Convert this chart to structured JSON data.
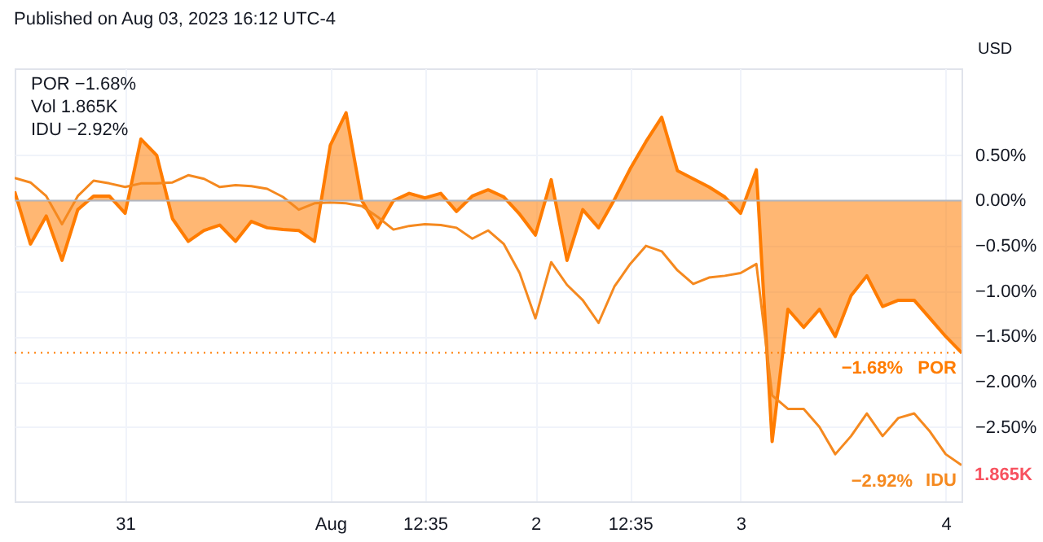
{
  "chart_data": {
    "type": "line",
    "title": "Published on Aug 03, 2023 16:12 UTC-4",
    "annotations": [
      "POR −1.68%",
      "Vol 1.865K",
      "IDU −2.92%",
      "USD",
      "1.865K",
      "−2.92%"
    ],
    "categories": [
      null,
      null,
      null,
      null,
      null,
      null,
      null,
      "31",
      null,
      null,
      null,
      null,
      null,
      null,
      null,
      null,
      null,
      null,
      null,
      null,
      "Aug",
      null,
      null,
      null,
      null,
      null,
      "12:35",
      null,
      null,
      null,
      null,
      null,
      null,
      "2",
      null,
      null,
      null,
      null,
      null,
      "12:35",
      null,
      null,
      null,
      null,
      null,
      null,
      "3",
      null,
      null,
      null,
      null,
      null,
      null,
      null,
      null,
      null,
      null,
      null,
      null,
      "4",
      null
    ],
    "ylim": [
      -3.32,
      1.46
    ],
    "yticks": [
      {
        "value": 0.5,
        "label": "0.50%"
      },
      {
        "value": 0,
        "label": "0.00%"
      },
      {
        "value": -0.5,
        "label": "−0.50%"
      },
      {
        "value": -1,
        "label": "−1.00%"
      },
      {
        "value": -1.5,
        "label": "−1.50%"
      },
      {
        "value": -2,
        "label": "−2.00%"
      },
      {
        "value": -2.5,
        "label": "−2.50%"
      }
    ],
    "grid": true,
    "ref_lines": [
      {
        "axis": "y",
        "value": 0,
        "color": "#b2b5be"
      },
      {
        "axis": "y",
        "value": -1.68,
        "label": "−1.68%",
        "color": "#ff7c00",
        "line_style": "dotted"
      }
    ],
    "series": [
      {
        "name": "POR",
        "type": "area",
        "color": "#ff7c00",
        "values": [
          0.1,
          -0.48,
          -0.17,
          -0.66,
          -0.1,
          0.05,
          0.05,
          -0.14,
          0.68,
          0.5,
          -0.2,
          -0.45,
          -0.33,
          -0.27,
          -0.45,
          -0.23,
          -0.3,
          -0.32,
          -0.33,
          -0.45,
          0.61,
          0.97,
          0.0,
          -0.3,
          0.0,
          0.08,
          0.03,
          0.08,
          -0.12,
          0.05,
          0.12,
          0.04,
          -0.15,
          -0.38,
          0.23,
          -0.66,
          -0.1,
          -0.3,
          0.01,
          0.35,
          0.65,
          0.92,
          0.33,
          0.24,
          0.15,
          0.04,
          -0.14,
          0.34,
          -2.66,
          -1.2,
          -1.4,
          -1.2,
          -1.5,
          -1.05,
          -0.83,
          -1.17,
          -1.1,
          -1.1,
          -1.3,
          -1.5,
          -1.68
        ]
      },
      {
        "name": "IDU",
        "color": "#f5891f",
        "values": [
          0.25,
          0.2,
          0.05,
          -0.26,
          0.05,
          0.22,
          0.19,
          0.15,
          0.19,
          0.19,
          0.2,
          0.28,
          0.24,
          0.15,
          0.17,
          0.16,
          0.13,
          0.04,
          -0.1,
          -0.03,
          -0.02,
          -0.03,
          -0.06,
          -0.18,
          -0.32,
          -0.28,
          -0.26,
          -0.27,
          -0.3,
          -0.42,
          -0.33,
          -0.48,
          -0.8,
          -1.3,
          -0.68,
          -0.93,
          -1.1,
          -1.35,
          -0.95,
          -0.7,
          -0.5,
          -0.56,
          -0.77,
          -0.92,
          -0.85,
          -0.83,
          -0.8,
          -0.7,
          -2.15,
          -2.3,
          -2.3,
          -2.5,
          -2.8,
          -2.6,
          -2.35,
          -2.6,
          -2.4,
          -2.35,
          -2.55,
          -2.8,
          -2.92
        ]
      }
    ]
  }
}
